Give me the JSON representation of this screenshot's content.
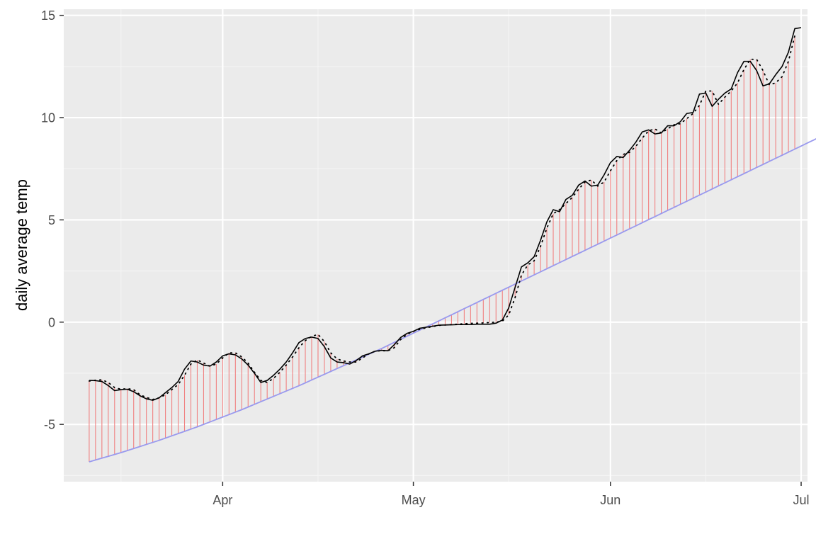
{
  "chart_data": {
    "type": "line",
    "title": "",
    "xlabel": "",
    "ylabel": "daily average temp",
    "x_start_date": "2018-03-11",
    "x_end_date": "2018-06-29",
    "xlim_dates": [
      "2018-03-07",
      "2018-07-02"
    ],
    "ylim": [
      -7.8,
      15.3
    ],
    "x_ticks": [
      {
        "date": "2018-04-01",
        "label": "Apr"
      },
      {
        "date": "2018-05-01",
        "label": "May"
      },
      {
        "date": "2018-06-01",
        "label": "Jun"
      },
      {
        "date": "2018-07-01",
        "label": "Jul"
      }
    ],
    "x_minor_ticks": [
      "2018-03-16",
      "2018-04-16",
      "2018-05-16",
      "2018-06-16"
    ],
    "y_ticks": [
      {
        "value": -5,
        "label": "-5"
      },
      {
        "value": 0,
        "label": "0"
      },
      {
        "value": 5,
        "label": "5"
      },
      {
        "value": 10,
        "label": "10"
      },
      {
        "value": 15,
        "label": "15"
      }
    ],
    "y_minor_ticks": [
      -7.5,
      -2.5,
      2.5,
      7.5,
      12.5
    ],
    "grid": true,
    "background": "#EBEBEB",
    "colors": {
      "grid_major": "#FFFFFF",
      "grid_minor": "#F5F5F5",
      "solid_line": "#000000",
      "dotted_line": "#000000",
      "baseline": "#9999EE",
      "segments": "#F08080",
      "tick_text": "#4D4D4D"
    },
    "series": [
      {
        "style": "solid",
        "color": "#000000",
        "values": [
          -2.85,
          -2.86,
          -2.9,
          -3.1,
          -3.35,
          -3.3,
          -3.28,
          -3.4,
          -3.6,
          -3.75,
          -3.82,
          -3.7,
          -3.45,
          -3.2,
          -2.9,
          -2.3,
          -1.9,
          -1.95,
          -2.1,
          -2.15,
          -1.95,
          -1.65,
          -1.55,
          -1.6,
          -1.8,
          -2.1,
          -2.5,
          -2.95,
          -2.85,
          -2.6,
          -2.3,
          -1.95,
          -1.5,
          -1.0,
          -0.8,
          -0.73,
          -0.8,
          -1.2,
          -1.75,
          -1.95,
          -1.98,
          -2.05,
          -1.88,
          -1.65,
          -1.55,
          -1.42,
          -1.38,
          -1.4,
          -1.1,
          -0.75,
          -0.55,
          -0.45,
          -0.3,
          -0.25,
          -0.2,
          -0.15,
          -0.14,
          -0.13,
          -0.12,
          -0.12,
          -0.12,
          -0.1,
          -0.1,
          -0.1,
          -0.05,
          0.1,
          0.7,
          1.7,
          2.7,
          2.9,
          3.2,
          4.0,
          4.9,
          5.5,
          5.4,
          6.0,
          6.2,
          6.7,
          6.9,
          6.65,
          6.7,
          7.2,
          7.8,
          8.1,
          8.05,
          8.4,
          8.8,
          9.3,
          9.4,
          9.2,
          9.25,
          9.6,
          9.6,
          9.8,
          10.2,
          10.25,
          11.15,
          11.2,
          10.55,
          10.9,
          11.2,
          11.4,
          12.2,
          12.75,
          12.75,
          12.3,
          11.55,
          11.65,
          12.1,
          12.5,
          13.2,
          14.35,
          14.4
        ]
      },
      {
        "style": "dotted",
        "color": "#000000",
        "values": [
          -2.88,
          -2.84,
          -2.82,
          -2.95,
          -3.2,
          -3.28,
          -3.25,
          -3.3,
          -3.55,
          -3.68,
          -3.78,
          -3.7,
          -3.55,
          -3.3,
          -3.05,
          -2.6,
          -2.05,
          -1.85,
          -2.0,
          -2.15,
          -2.05,
          -1.75,
          -1.5,
          -1.5,
          -1.7,
          -2.0,
          -2.45,
          -2.85,
          -2.95,
          -2.75,
          -2.45,
          -2.1,
          -1.7,
          -1.25,
          -0.9,
          -0.7,
          -0.6,
          -0.95,
          -1.5,
          -1.8,
          -1.9,
          -1.95,
          -1.95,
          -1.75,
          -1.55,
          -1.42,
          -1.4,
          -1.4,
          -1.25,
          -0.85,
          -0.6,
          -0.45,
          -0.35,
          -0.28,
          -0.22,
          -0.16,
          -0.14,
          -0.12,
          -0.1,
          -0.08,
          -0.06,
          -0.05,
          -0.04,
          -0.02,
          0.0,
          0.05,
          0.35,
          1.2,
          2.3,
          2.8,
          3.0,
          3.7,
          4.6,
          5.3,
          5.5,
          5.8,
          6.1,
          6.5,
          6.85,
          6.95,
          6.65,
          6.85,
          7.4,
          7.9,
          8.2,
          8.3,
          8.6,
          9.0,
          9.35,
          9.45,
          9.25,
          9.45,
          9.65,
          9.7,
          9.95,
          10.2,
          10.6,
          11.3,
          11.3,
          10.65,
          11.0,
          11.3,
          11.7,
          12.35,
          12.85,
          12.85,
          12.3,
          11.6,
          11.7,
          12.0,
          12.75,
          14.0
        ]
      },
      {
        "style": "solid",
        "color": "#9999EE",
        "values": [
          -6.83,
          -6.74,
          -6.65,
          -6.56,
          -6.47,
          -6.38,
          -6.28,
          -6.18,
          -6.08,
          -5.98,
          -5.88,
          -5.78,
          -5.67,
          -5.56,
          -5.45,
          -5.34,
          -5.23,
          -5.12,
          -5.0,
          -4.88,
          -4.76,
          -4.64,
          -4.52,
          -4.4,
          -4.28,
          -4.15,
          -4.02,
          -3.89,
          -3.76,
          -3.63,
          -3.5,
          -3.37,
          -3.24,
          -3.11,
          -2.97,
          -2.83,
          -2.69,
          -2.55,
          -2.41,
          -2.27,
          -2.13,
          -1.99,
          -1.85,
          -1.71,
          -1.57,
          -1.43,
          -1.29,
          -1.14,
          -0.99,
          -0.84,
          -0.69,
          -0.54,
          -0.39,
          -0.24,
          -0.09,
          0.06,
          0.21,
          0.36,
          0.51,
          0.66,
          0.81,
          0.96,
          1.11,
          1.26,
          1.41,
          1.56,
          1.71,
          1.86,
          2.01,
          2.16,
          2.31,
          2.46,
          2.61,
          2.76,
          2.91,
          3.06,
          3.21,
          3.36,
          3.51,
          3.66,
          3.81,
          3.96,
          4.11,
          4.26,
          4.41,
          4.56,
          4.71,
          4.86,
          5.01,
          5.16,
          5.31,
          5.46,
          5.61,
          5.76,
          5.91,
          6.06,
          6.21,
          6.36,
          6.51,
          6.66,
          6.81,
          6.96,
          7.11,
          7.26,
          7.41,
          7.56,
          7.71,
          7.86,
          8.01,
          8.16,
          8.31,
          8.46,
          8.61,
          8.76,
          8.91,
          9.06
        ]
      }
    ],
    "segments": {
      "from_series": 1,
      "to_series": 2,
      "color": "#F08080"
    }
  }
}
